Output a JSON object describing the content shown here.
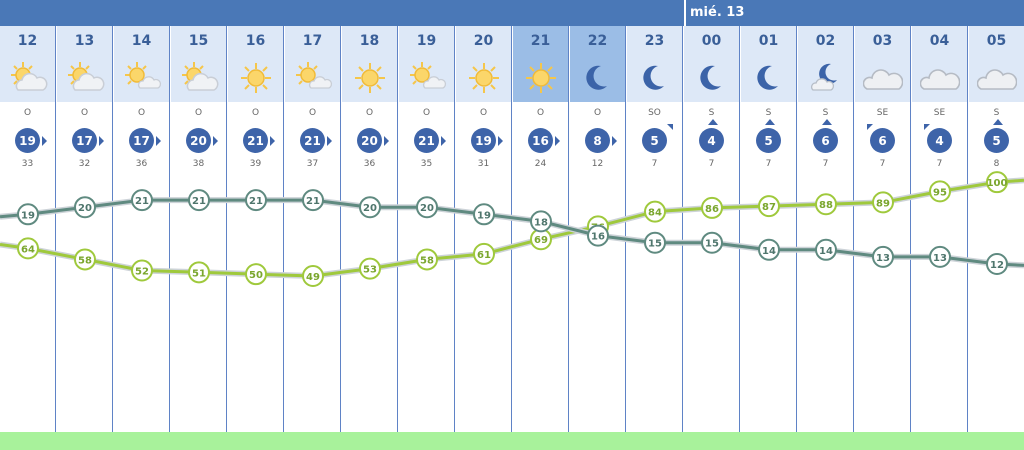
{
  "day_label": "mié. 13",
  "hours": [
    {
      "hour": "12",
      "icon": "sun-cloud-icon",
      "dir": "O",
      "wind": "19",
      "gust": "33",
      "arrow": "right",
      "night": false,
      "temp": 19,
      "hum": 64
    },
    {
      "hour": "13",
      "icon": "sun-cloud-icon",
      "dir": "O",
      "wind": "17",
      "gust": "32",
      "arrow": "right",
      "night": false,
      "temp": 20,
      "hum": 58
    },
    {
      "hour": "14",
      "icon": "sun-small-cloud-icon",
      "dir": "O",
      "wind": "17",
      "gust": "36",
      "arrow": "right",
      "night": false,
      "temp": 21,
      "hum": 52
    },
    {
      "hour": "15",
      "icon": "sun-cloud-icon",
      "dir": "O",
      "wind": "20",
      "gust": "38",
      "arrow": "right",
      "night": false,
      "temp": 21,
      "hum": 51
    },
    {
      "hour": "16",
      "icon": "sun-icon",
      "dir": "O",
      "wind": "21",
      "gust": "39",
      "arrow": "right",
      "night": false,
      "temp": 21,
      "hum": 50
    },
    {
      "hour": "17",
      "icon": "sun-small-cloud-icon",
      "dir": "O",
      "wind": "21",
      "gust": "37",
      "arrow": "right",
      "night": false,
      "temp": 21,
      "hum": 49
    },
    {
      "hour": "18",
      "icon": "sun-icon",
      "dir": "O",
      "wind": "20",
      "gust": "36",
      "arrow": "right",
      "night": false,
      "temp": 20,
      "hum": 53
    },
    {
      "hour": "19",
      "icon": "sun-small-cloud-icon",
      "dir": "O",
      "wind": "21",
      "gust": "35",
      "arrow": "right",
      "night": false,
      "temp": 20,
      "hum": 58
    },
    {
      "hour": "20",
      "icon": "sun-icon",
      "dir": "O",
      "wind": "19",
      "gust": "31",
      "arrow": "right",
      "night": false,
      "temp": 19,
      "hum": 61
    },
    {
      "hour": "21",
      "icon": "sun-icon",
      "dir": "O",
      "wind": "16",
      "gust": "24",
      "arrow": "right",
      "night": true,
      "temp": 18,
      "hum": 69
    },
    {
      "hour": "22",
      "icon": "moon-icon",
      "dir": "O",
      "wind": "8",
      "gust": "12",
      "arrow": "right",
      "night": true,
      "temp": 16,
      "hum": 76
    },
    {
      "hour": "23",
      "icon": "moon-icon",
      "dir": "SO",
      "wind": "5",
      "gust": "7",
      "arrow": "upright",
      "night": false,
      "temp": 15,
      "hum": 84
    },
    {
      "hour": "00",
      "icon": "moon-icon",
      "dir": "S",
      "wind": "4",
      "gust": "7",
      "arrow": "up",
      "night": false,
      "temp": 15,
      "hum": 86
    },
    {
      "hour": "01",
      "icon": "moon-icon",
      "dir": "S",
      "wind": "5",
      "gust": "7",
      "arrow": "up",
      "night": false,
      "temp": 14,
      "hum": 87
    },
    {
      "hour": "02",
      "icon": "moon-cloud-icon",
      "dir": "S",
      "wind": "6",
      "gust": "7",
      "arrow": "up",
      "night": false,
      "temp": 14,
      "hum": 88
    },
    {
      "hour": "03",
      "icon": "cloud-icon",
      "dir": "SE",
      "wind": "6",
      "gust": "7",
      "arrow": "upleft",
      "night": false,
      "temp": 13,
      "hum": 89
    },
    {
      "hour": "04",
      "icon": "cloud-icon",
      "dir": "SE",
      "wind": "4",
      "gust": "7",
      "arrow": "upleft",
      "night": false,
      "temp": 13,
      "hum": 95
    },
    {
      "hour": "05",
      "icon": "cloud-icon",
      "dir": "S",
      "wind": "5",
      "gust": "8",
      "arrow": "up",
      "night": false,
      "temp": 12,
      "hum": 100
    }
  ],
  "colors": {
    "header_day": "#dde8f7",
    "header_night": "#9bbde6",
    "wind_circle": "#3e64a9",
    "temp_line": "#5f8a80",
    "humidity_line": "#9fc93c",
    "green_bar": "#a8f29b",
    "top_bar": "#4a78b7"
  }
}
